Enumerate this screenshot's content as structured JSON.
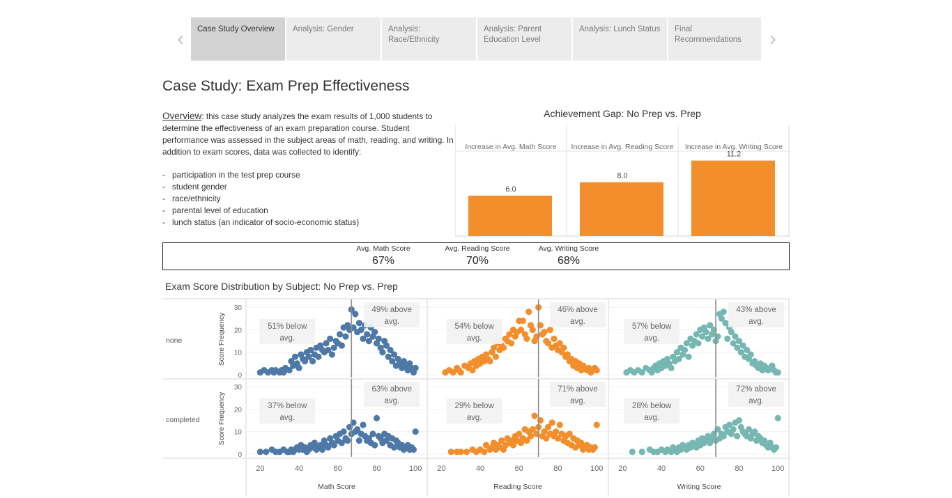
{
  "tabs": [
    {
      "label": "Case Study Overview",
      "active": true
    },
    {
      "label": "Analysis: Gender",
      "active": false
    },
    {
      "label": "Analysis: Race/Ethnicity",
      "active": false
    },
    {
      "label": "Analysis: Parent Education Level",
      "active": false
    },
    {
      "label": "Analysis: Lunch Status",
      "active": false
    },
    {
      "label": "Final Recommendations",
      "active": false
    }
  ],
  "nav": {
    "prev": "‹",
    "next": "›"
  },
  "page_title": "Case Study: Exam Prep Effectiveness",
  "overview": {
    "label": "Overview",
    "text": ": this case study analyzes the exam results of 1,000 students to determine the effectiveness of an exam preparation course. Student performance was assessed in the subject areas of math, reading, and writing. In addition to exam scores, data was collected to identify:",
    "bullets": [
      "participation in the test prep course",
      "student gender",
      "race/ethnicity",
      "parental level of education",
      "lunch status (an indicator of socio-economic status)"
    ]
  },
  "kpis": [
    {
      "label": "Avg. Math Score",
      "value": "67%"
    },
    {
      "label": "Avg. Reading Score",
      "value": "70%"
    },
    {
      "label": "Avg. Writing Score",
      "value": "68%"
    }
  ],
  "colors": {
    "bar": "#f28e2b",
    "math": "#4e79a7",
    "reading": "#f28e2b",
    "writing": "#76b7b2",
    "avg_line": "#8c8c8c",
    "annotation_bg": "#f2f2f2"
  },
  "chart_data": [
    {
      "type": "bar",
      "title": "Achievement Gap: No Prep vs. Prep",
      "categories": [
        "Increase in Avg. Math Score",
        "Increase in Avg. Reading Score",
        "Increase in Avg. Writing Score"
      ],
      "values": [
        6.0,
        8.0,
        11.2
      ],
      "value_labels": [
        "6.0",
        "8.0",
        "11.2"
      ],
      "ylim": [
        0,
        12.5
      ]
    },
    {
      "type": "scatter",
      "title": "Exam Score Distribution by Subject: No Prep vs. Prep",
      "row_labels": [
        "none",
        "completed"
      ],
      "ylabel": "Score Frequency",
      "yticks": [
        0,
        10,
        20,
        30
      ],
      "xticks": [
        20,
        40,
        60,
        80,
        100
      ],
      "xlim": [
        17,
        101
      ],
      "ylim_top": [
        0,
        31
      ],
      "ylim_bottom": [
        0,
        31
      ],
      "panels": [
        {
          "subject": "Math Score",
          "color_key": "math",
          "avg": 67,
          "none": {
            "below": "51% below avg.",
            "above": "49% above avg.",
            "x": [
              20,
              22,
              24,
              26,
              27,
              28,
              30,
              31,
              32,
              33,
              35,
              36,
              37,
              38,
              39,
              40,
              41,
              42,
              43,
              44,
              45,
              46,
              47,
              48,
              49,
              50,
              51,
              52,
              53,
              54,
              55,
              56,
              57,
              58,
              59,
              60,
              61,
              62,
              63,
              64,
              65,
              66,
              67,
              68,
              69,
              70,
              71,
              72,
              73,
              74,
              75,
              76,
              77,
              78,
              79,
              80,
              81,
              82,
              83,
              84,
              85,
              86,
              87,
              88,
              89,
              90,
              91,
              92,
              93,
              94,
              95,
              96,
              97,
              98,
              99,
              100
            ],
            "y": [
              1,
              2,
              1,
              2,
              1,
              2,
              1,
              2,
              1,
              3,
              2,
              6,
              4,
              8,
              5,
              3,
              9,
              7,
              6,
              10,
              8,
              11,
              6,
              9,
              12,
              8,
              13,
              11,
              10,
              14,
              11,
              16,
              9,
              12,
              15,
              14,
              18,
              13,
              21,
              17,
              22,
              20,
              29,
              21,
              27,
              19,
              23,
              20,
              16,
              22,
              18,
              15,
              21,
              17,
              19,
              14,
              16,
              12,
              10,
              15,
              13,
              8,
              11,
              6,
              9,
              4,
              7,
              5,
              3,
              6,
              4,
              2,
              5,
              3,
              1,
              3
            ]
          },
          "completed": {
            "below": "37% below avg.",
            "above": "63% above avg.",
            "x": [
              20,
              23,
              26,
              28,
              30,
              32,
              34,
              35,
              36,
              37,
              38,
              39,
              40,
              41,
              42,
              43,
              44,
              45,
              46,
              47,
              48,
              49,
              50,
              51,
              52,
              53,
              54,
              55,
              56,
              57,
              58,
              59,
              60,
              61,
              62,
              63,
              64,
              65,
              66,
              67,
              68,
              69,
              70,
              71,
              72,
              73,
              74,
              75,
              76,
              77,
              78,
              79,
              80,
              81,
              82,
              83,
              84,
              85,
              86,
              87,
              88,
              89,
              90,
              91,
              92,
              93,
              94,
              95,
              96,
              97,
              98,
              99,
              100
            ],
            "y": [
              1,
              1,
              2,
              1,
              1,
              2,
              1,
              1,
              2,
              1,
              2,
              3,
              2,
              4,
              2,
              3,
              1,
              2,
              4,
              3,
              5,
              2,
              3,
              4,
              2,
              6,
              4,
              3,
              7,
              5,
              4,
              8,
              6,
              9,
              5,
              10,
              7,
              6,
              12,
              9,
              14,
              10,
              11,
              6,
              9,
              13,
              8,
              6,
              7,
              5,
              9,
              4,
              16,
              8,
              7,
              5,
              9,
              6,
              8,
              4,
              7,
              3,
              6,
              5,
              3,
              4,
              2,
              3,
              4,
              2,
              3,
              2,
              10
            ]
          }
        },
        {
          "subject": "Reading Score",
          "color_key": "reading",
          "avg": 70,
          "none": {
            "below": "54% below avg.",
            "above": "46% above avg.",
            "x": [
              22,
              24,
              26,
              28,
              29,
              30,
              32,
              34,
              35,
              36,
              37,
              38,
              39,
              40,
              41,
              42,
              43,
              44,
              45,
              46,
              47,
              48,
              49,
              50,
              51,
              52,
              53,
              54,
              55,
              56,
              57,
              58,
              59,
              60,
              61,
              62,
              63,
              64,
              65,
              66,
              67,
              68,
              69,
              70,
              71,
              72,
              73,
              74,
              75,
              76,
              77,
              78,
              79,
              80,
              81,
              82,
              83,
              84,
              85,
              86,
              87,
              88,
              89,
              90,
              91,
              92,
              93,
              94,
              95,
              96,
              97,
              98,
              99,
              100
            ],
            "y": [
              1,
              2,
              1,
              3,
              2,
              1,
              4,
              3,
              5,
              2,
              6,
              4,
              7,
              5,
              8,
              6,
              9,
              7,
              6,
              10,
              12,
              8,
              14,
              11,
              13,
              12,
              16,
              15,
              18,
              14,
              20,
              17,
              19,
              24,
              20,
              24,
              18,
              16,
              28,
              22,
              20,
              15,
              17,
              30,
              22,
              18,
              19,
              15,
              14,
              20,
              12,
              16,
              13,
              11,
              14,
              10,
              12,
              8,
              9,
              6,
              7,
              4,
              6,
              3,
              5,
              2,
              4,
              3,
              2,
              3,
              1,
              2,
              3,
              2
            ]
          },
          "completed": {
            "below": "29% below avg.",
            "above": "71% above avg.",
            "x": [
              25,
              28,
              30,
              33,
              36,
              38,
              40,
              42,
              43,
              45,
              46,
              47,
              48,
              49,
              50,
              51,
              52,
              53,
              54,
              55,
              56,
              57,
              58,
              59,
              60,
              61,
              62,
              63,
              64,
              65,
              66,
              67,
              68,
              69,
              70,
              71,
              72,
              73,
              74,
              75,
              76,
              77,
              78,
              79,
              80,
              81,
              82,
              83,
              84,
              85,
              86,
              87,
              88,
              89,
              90,
              91,
              92,
              93,
              94,
              95,
              96,
              97,
              98,
              99,
              100
            ],
            "y": [
              1,
              1,
              1,
              1,
              2,
              1,
              2,
              1,
              4,
              2,
              3,
              5,
              2,
              4,
              3,
              6,
              2,
              4,
              7,
              5,
              6,
              4,
              8,
              6,
              9,
              5,
              7,
              11,
              6,
              10,
              8,
              11,
              17,
              9,
              12,
              15,
              8,
              10,
              7,
              12,
              9,
              14,
              8,
              10,
              7,
              13,
              9,
              6,
              8,
              5,
              9,
              4,
              7,
              3,
              6,
              4,
              5,
              2,
              3,
              4,
              2,
              3,
              2,
              3,
              13
            ]
          }
        },
        {
          "subject": "Writing Score",
          "color_key": "writing",
          "avg": 68,
          "none": {
            "below": "57% below avg.",
            "above": "43% above avg.",
            "x": [
              22,
              24,
              26,
              28,
              30,
              32,
              34,
              35,
              36,
              37,
              38,
              39,
              40,
              41,
              42,
              43,
              44,
              45,
              46,
              47,
              48,
              49,
              50,
              51,
              52,
              53,
              54,
              55,
              56,
              57,
              58,
              59,
              60,
              61,
              62,
              63,
              64,
              65,
              66,
              67,
              68,
              69,
              70,
              71,
              72,
              73,
              74,
              75,
              76,
              77,
              78,
              79,
              80,
              81,
              82,
              83,
              84,
              85,
              86,
              87,
              88,
              89,
              90,
              91,
              92,
              93,
              94,
              95,
              96,
              97,
              98,
              99,
              100
            ],
            "y": [
              1,
              2,
              1,
              2,
              1,
              3,
              2,
              1,
              3,
              4,
              2,
              5,
              3,
              6,
              4,
              7,
              5,
              3,
              8,
              6,
              10,
              7,
              12,
              9,
              11,
              14,
              8,
              16,
              13,
              15,
              18,
              14,
              20,
              17,
              21,
              19,
              16,
              22,
              18,
              20,
              15,
              17,
              27,
              25,
              28,
              23,
              16,
              21,
              19,
              14,
              17,
              12,
              15,
              10,
              13,
              8,
              11,
              7,
              9,
              5,
              6,
              4,
              3,
              5,
              2,
              4,
              3,
              2,
              3,
              4,
              2,
              1,
              1
            ]
          },
          "completed": {
            "below": "28% below avg.",
            "above": "72% above avg.",
            "x": [
              25,
              30,
              34,
              36,
              38,
              40,
              42,
              43,
              45,
              46,
              47,
              48,
              49,
              50,
              51,
              52,
              53,
              54,
              55,
              56,
              57,
              58,
              59,
              60,
              61,
              62,
              63,
              64,
              65,
              66,
              67,
              68,
              69,
              70,
              71,
              72,
              73,
              74,
              75,
              76,
              77,
              78,
              79,
              80,
              81,
              82,
              83,
              84,
              85,
              86,
              87,
              88,
              89,
              90,
              91,
              92,
              93,
              94,
              95,
              96,
              97,
              98,
              99,
              100
            ],
            "y": [
              1,
              1,
              2,
              1,
              1,
              2,
              1,
              2,
              1,
              3,
              2,
              1,
              3,
              2,
              4,
              3,
              2,
              4,
              3,
              5,
              4,
              3,
              6,
              4,
              7,
              5,
              6,
              8,
              5,
              7,
              9,
              6,
              11,
              7,
              9,
              8,
              12,
              10,
              13,
              9,
              11,
              14,
              8,
              15,
              12,
              10,
              9,
              8,
              11,
              7,
              9,
              10,
              6,
              8,
              7,
              5,
              6,
              4,
              3,
              5,
              3,
              2,
              3,
              16
            ]
          }
        }
      ]
    }
  ]
}
